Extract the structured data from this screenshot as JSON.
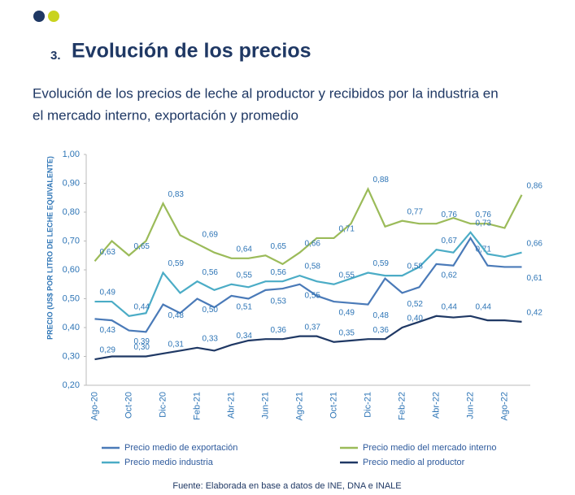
{
  "header": {
    "number": "3.",
    "title": "Evolución de los precios",
    "subtitle_line1": "Evolución de los precios de leche al productor y recibidos por la industria en",
    "subtitle_line2": "el mercado interno, exportación y promedio"
  },
  "chart_data": {
    "type": "line",
    "ylabel": "PRECIO (US$ POR LITRO DE LECHE EQUIVALENTE)",
    "categories": [
      "Ago-20",
      null,
      "Oct-20",
      null,
      "Dic-20",
      null,
      "Feb-21",
      null,
      "Abr-21",
      null,
      "Jun-21",
      null,
      "Ago-21",
      null,
      "Oct-21",
      null,
      "Dic-21",
      null,
      "Feb-22",
      null,
      "Abr-22",
      null,
      "Jun-22",
      null,
      "Ago-22",
      null
    ],
    "ylim": [
      0.2,
      1.0
    ],
    "yticks": [
      {
        "value": 0.2,
        "label": "0,20"
      },
      {
        "value": 0.3,
        "label": "0,30"
      },
      {
        "value": 0.4,
        "label": "0,40"
      },
      {
        "value": 0.5,
        "label": "0,50"
      },
      {
        "value": 0.6,
        "label": "0,60"
      },
      {
        "value": 0.7,
        "label": "0,70"
      },
      {
        "value": 0.8,
        "label": "0,80"
      },
      {
        "value": 0.9,
        "label": "0,90"
      },
      {
        "value": 1.0,
        "label": "1,00"
      }
    ],
    "series": [
      {
        "name": "Precio medio de exportación",
        "color": "#4a7ab8",
        "values": [
          0.43,
          0.425,
          0.39,
          0.385,
          0.48,
          0.45,
          0.5,
          0.47,
          0.51,
          0.5,
          0.53,
          0.535,
          0.55,
          0.51,
          0.49,
          0.485,
          0.48,
          0.57,
          0.52,
          0.54,
          0.62,
          0.615,
          0.71,
          0.615,
          0.61,
          0.61
        ],
        "value_labels": [
          "0,43",
          null,
          "0,39",
          null,
          "0,48",
          null,
          "0,50",
          null,
          "0,51",
          null,
          "0,53",
          null,
          "0,55",
          null,
          "0,49",
          null,
          "0,48",
          null,
          "0,52",
          null,
          "0,62",
          null,
          "0,71",
          null,
          null,
          "0,61"
        ]
      },
      {
        "name": "Precio medio del mercado interno",
        "color": "#9bbb59",
        "values": [
          0.63,
          0.7,
          0.65,
          0.7,
          0.83,
          0.72,
          0.69,
          0.66,
          0.64,
          0.64,
          0.65,
          0.62,
          0.66,
          0.71,
          0.71,
          0.76,
          0.88,
          0.75,
          0.77,
          0.76,
          0.76,
          0.78,
          0.76,
          0.76,
          0.745,
          0.86
        ],
        "value_labels": [
          "0,63",
          null,
          "0,65",
          null,
          "0,83",
          null,
          "0,69",
          null,
          "0,64",
          null,
          "0,65",
          null,
          "0,66",
          null,
          "0,71",
          null,
          "0,88",
          null,
          "0,77",
          null,
          "0,76",
          null,
          "0,76",
          null,
          null,
          "0,86"
        ]
      },
      {
        "name": "Precio medio industria",
        "color": "#4bacc6",
        "values": [
          0.49,
          0.49,
          0.44,
          0.45,
          0.59,
          0.52,
          0.56,
          0.53,
          0.55,
          0.54,
          0.56,
          0.56,
          0.58,
          0.56,
          0.55,
          0.57,
          0.59,
          0.58,
          0.58,
          0.61,
          0.67,
          0.66,
          0.73,
          0.655,
          0.645,
          0.66
        ],
        "value_labels": [
          "0,49",
          null,
          "0,44",
          null,
          "0,59",
          null,
          "0,56",
          null,
          "0,55",
          null,
          "0,56",
          null,
          "0,58",
          null,
          "0,55",
          null,
          "0,59",
          null,
          "0,58",
          null,
          "0,67",
          null,
          "0,73",
          null,
          null,
          "0,66"
        ]
      },
      {
        "name": "Precio medio al productor",
        "color": "#1f3864",
        "values": [
          0.29,
          0.3,
          0.3,
          0.3,
          0.31,
          0.32,
          0.33,
          0.32,
          0.34,
          0.355,
          0.36,
          0.36,
          0.37,
          0.37,
          0.35,
          0.355,
          0.36,
          0.36,
          0.4,
          0.42,
          0.44,
          0.435,
          0.44,
          0.425,
          0.425,
          0.42
        ],
        "value_labels": [
          "0,29",
          null,
          "0,30",
          null,
          "0,31",
          null,
          "0,33",
          null,
          "0,34",
          null,
          "0,36",
          null,
          "0,37",
          null,
          "0,35",
          null,
          "0,36",
          null,
          "0,40",
          null,
          "0,44",
          null,
          "0,44",
          null,
          null,
          "0,42"
        ]
      }
    ],
    "source": "Fuente: Elaborada en base a datos de INE, DNA e INALE"
  }
}
